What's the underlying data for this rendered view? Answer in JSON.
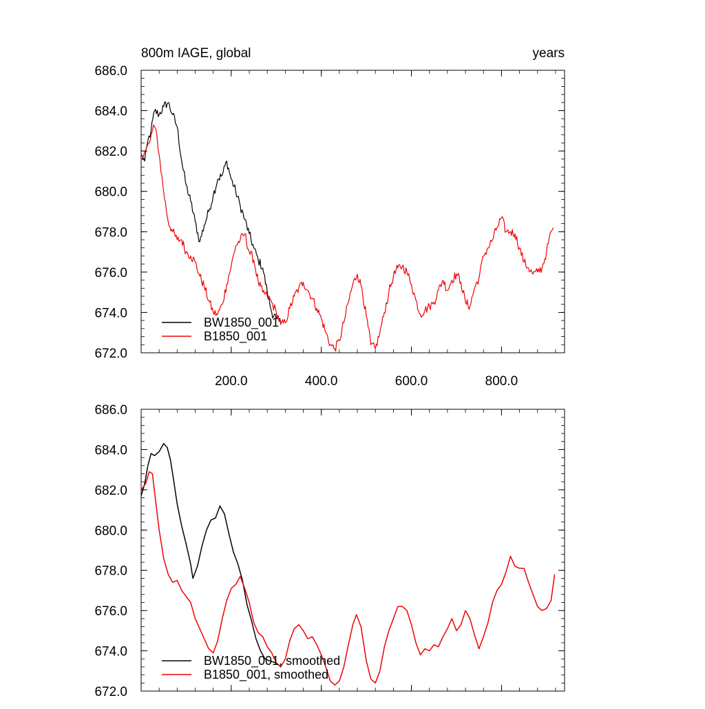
{
  "title_left": "800m IAGE, global",
  "title_right": "years",
  "chart_data": [
    {
      "type": "line",
      "panel": "top",
      "title": "800m IAGE, global",
      "units_label": "years",
      "xlim": [
        0,
        940
      ],
      "ylim": [
        672.0,
        686.0
      ],
      "x_ticks": [
        200.0,
        400.0,
        600.0,
        800.0
      ],
      "x_tick_labels": [
        "200.0",
        "400.0",
        "600.0",
        "800.0"
      ],
      "y_ticks": [
        672.0,
        674.0,
        676.0,
        678.0,
        680.0,
        682.0,
        684.0,
        686.0
      ],
      "y_tick_labels": [
        "672.0",
        "674.0",
        "676.0",
        "678.0",
        "680.0",
        "682.0",
        "684.0",
        "686.0"
      ],
      "grid": false,
      "legend_position": "bottom-left",
      "noisy": true,
      "series": [
        {
          "name": "BW1850_001",
          "color": "#000000",
          "points": [
            [
              0,
              681.8
            ],
            [
              8,
              681.5
            ],
            [
              15,
              682.5
            ],
            [
              22,
              683.0
            ],
            [
              30,
              684.0
            ],
            [
              40,
              683.8
            ],
            [
              50,
              684.2
            ],
            [
              60,
              684.4
            ],
            [
              70,
              683.8
            ],
            [
              80,
              683.2
            ],
            [
              90,
              681.5
            ],
            [
              100,
              680.3
            ],
            [
              110,
              679.5
            ],
            [
              120,
              678.5
            ],
            [
              130,
              677.5
            ],
            [
              140,
              678.3
            ],
            [
              150,
              679.0
            ],
            [
              160,
              679.8
            ],
            [
              170,
              680.6
            ],
            [
              180,
              680.8
            ],
            [
              190,
              681.5
            ],
            [
              200,
              680.6
            ],
            [
              210,
              680.0
            ],
            [
              220,
              679.3
            ],
            [
              230,
              678.6
            ],
            [
              240,
              677.9
            ],
            [
              250,
              677.2
            ],
            [
              260,
              676.6
            ],
            [
              270,
              676.2
            ],
            [
              280,
              675.0
            ],
            [
              290,
              674.0
            ],
            [
              300,
              673.7
            ],
            [
              310,
              673.5
            ]
          ]
        },
        {
          "name": "B1850_001",
          "color": "#ee0000",
          "points": [
            [
              0,
              681.8
            ],
            [
              10,
              682.0
            ],
            [
              20,
              682.5
            ],
            [
              25,
              683.0
            ],
            [
              30,
              683.2
            ],
            [
              35,
              682.8
            ],
            [
              40,
              681.8
            ],
            [
              50,
              680.0
            ],
            [
              60,
              678.5
            ],
            [
              70,
              678.0
            ],
            [
              80,
              677.6
            ],
            [
              90,
              677.6
            ],
            [
              100,
              677.0
            ],
            [
              110,
              676.8
            ],
            [
              120,
              676.5
            ],
            [
              130,
              675.8
            ],
            [
              140,
              675.3
            ],
            [
              150,
              674.6
            ],
            [
              160,
              674.0
            ],
            [
              170,
              673.9
            ],
            [
              180,
              674.4
            ],
            [
              190,
              675.4
            ],
            [
              200,
              676.3
            ],
            [
              210,
              677.3
            ],
            [
              220,
              677.6
            ],
            [
              230,
              677.9
            ],
            [
              240,
              677.0
            ],
            [
              250,
              676.6
            ],
            [
              260,
              675.5
            ],
            [
              270,
              675.0
            ],
            [
              280,
              674.8
            ],
            [
              290,
              674.5
            ],
            [
              300,
              674.0
            ],
            [
              310,
              673.4
            ],
            [
              320,
              673.5
            ],
            [
              330,
              674.2
            ],
            [
              340,
              674.8
            ],
            [
              350,
              675.2
            ],
            [
              360,
              675.5
            ],
            [
              370,
              675.1
            ],
            [
              380,
              674.7
            ],
            [
              390,
              674.2
            ],
            [
              400,
              673.7
            ],
            [
              410,
              673.0
            ],
            [
              420,
              672.4
            ],
            [
              430,
              672.2
            ],
            [
              440,
              672.6
            ],
            [
              450,
              673.5
            ],
            [
              460,
              674.5
            ],
            [
              470,
              675.4
            ],
            [
              480,
              675.9
            ],
            [
              490,
              675.2
            ],
            [
              500,
              673.8
            ],
            [
              510,
              672.4
            ],
            [
              520,
              672.2
            ],
            [
              530,
              673.0
            ],
            [
              540,
              674.0
            ],
            [
              550,
              675.0
            ],
            [
              560,
              675.8
            ],
            [
              570,
              676.2
            ],
            [
              580,
              676.3
            ],
            [
              590,
              676.0
            ],
            [
              600,
              675.4
            ],
            [
              610,
              674.6
            ],
            [
              620,
              673.9
            ],
            [
              630,
              674.1
            ],
            [
              640,
              674.3
            ],
            [
              650,
              674.5
            ],
            [
              660,
              675.1
            ],
            [
              670,
              675.6
            ],
            [
              680,
              675.1
            ],
            [
              690,
              675.6
            ],
            [
              700,
              675.9
            ],
            [
              710,
              675.5
            ],
            [
              720,
              674.5
            ],
            [
              730,
              674.3
            ],
            [
              740,
              675.2
            ],
            [
              750,
              675.7
            ],
            [
              760,
              676.8
            ],
            [
              770,
              677.2
            ],
            [
              780,
              677.6
            ],
            [
              790,
              678.2
            ],
            [
              800,
              678.7
            ],
            [
              810,
              678.0
            ],
            [
              820,
              678.0
            ],
            [
              830,
              677.9
            ],
            [
              840,
              677.2
            ],
            [
              850,
              676.5
            ],
            [
              860,
              676.2
            ],
            [
              870,
              675.9
            ],
            [
              880,
              676.0
            ],
            [
              890,
              676.2
            ],
            [
              900,
              677.0
            ],
            [
              910,
              678.0
            ],
            [
              915,
              678.2
            ]
          ]
        }
      ]
    },
    {
      "type": "line",
      "panel": "bottom",
      "xlim": [
        0,
        940
      ],
      "ylim": [
        672.0,
        686.0
      ],
      "y_ticks": [
        672.0,
        674.0,
        676.0,
        678.0,
        680.0,
        682.0,
        684.0,
        686.0
      ],
      "y_tick_labels": [
        "672.0",
        "674.0",
        "676.0",
        "678.0",
        "680.0",
        "682.0",
        "684.0",
        "686.0"
      ],
      "grid": false,
      "legend_position": "bottom-left",
      "noisy": false,
      "series": [
        {
          "name": "BW1850_001, smoothed",
          "color": "#000000",
          "points": [
            [
              0,
              681.7
            ],
            [
              8,
              682.3
            ],
            [
              15,
              683.2
            ],
            [
              22,
              683.8
            ],
            [
              30,
              683.7
            ],
            [
              40,
              683.9
            ],
            [
              50,
              684.3
            ],
            [
              58,
              684.1
            ],
            [
              65,
              683.5
            ],
            [
              72,
              682.5
            ],
            [
              80,
              681.3
            ],
            [
              90,
              680.2
            ],
            [
              100,
              679.3
            ],
            [
              110,
              678.3
            ],
            [
              115,
              677.6
            ],
            [
              125,
              678.2
            ],
            [
              135,
              679.2
            ],
            [
              145,
              680.0
            ],
            [
              155,
              680.5
            ],
            [
              165,
              680.6
            ],
            [
              175,
              681.2
            ],
            [
              185,
              680.8
            ],
            [
              195,
              679.8
            ],
            [
              205,
              678.9
            ],
            [
              215,
              678.3
            ],
            [
              225,
              677.5
            ],
            [
              235,
              676.3
            ],
            [
              245,
              675.5
            ],
            [
              255,
              674.6
            ],
            [
              265,
              674.0
            ],
            [
              275,
              673.6
            ],
            [
              285,
              673.5
            ],
            [
              300,
              673.4
            ],
            [
              310,
              673.2
            ]
          ]
        },
        {
          "name": "B1850_001, smoothed",
          "color": "#ee0000",
          "points": [
            [
              0,
              682.0
            ],
            [
              10,
              682.3
            ],
            [
              18,
              682.9
            ],
            [
              25,
              682.8
            ],
            [
              32,
              681.5
            ],
            [
              40,
              680.0
            ],
            [
              50,
              678.6
            ],
            [
              60,
              677.8
            ],
            [
              70,
              677.4
            ],
            [
              80,
              677.5
            ],
            [
              90,
              677.0
            ],
            [
              100,
              676.7
            ],
            [
              110,
              676.4
            ],
            [
              120,
              675.6
            ],
            [
              130,
              675.1
            ],
            [
              140,
              674.6
            ],
            [
              150,
              674.1
            ],
            [
              160,
              673.9
            ],
            [
              170,
              674.5
            ],
            [
              180,
              675.6
            ],
            [
              190,
              676.5
            ],
            [
              200,
              677.1
            ],
            [
              210,
              677.3
            ],
            [
              220,
              677.7
            ],
            [
              230,
              677.1
            ],
            [
              240,
              676.4
            ],
            [
              250,
              675.4
            ],
            [
              260,
              674.9
            ],
            [
              270,
              674.7
            ],
            [
              280,
              674.2
            ],
            [
              290,
              673.9
            ],
            [
              300,
              673.4
            ],
            [
              310,
              673.2
            ],
            [
              320,
              673.6
            ],
            [
              330,
              674.5
            ],
            [
              340,
              675.1
            ],
            [
              350,
              675.3
            ],
            [
              360,
              675.0
            ],
            [
              370,
              674.6
            ],
            [
              380,
              674.7
            ],
            [
              390,
              674.3
            ],
            [
              400,
              673.8
            ],
            [
              410,
              673.2
            ],
            [
              420,
              672.5
            ],
            [
              430,
              672.3
            ],
            [
              440,
              672.5
            ],
            [
              450,
              673.2
            ],
            [
              460,
              674.3
            ],
            [
              470,
              675.3
            ],
            [
              478,
              675.8
            ],
            [
              488,
              675.2
            ],
            [
              500,
              673.5
            ],
            [
              510,
              672.6
            ],
            [
              520,
              672.4
            ],
            [
              530,
              673.0
            ],
            [
              540,
              674.2
            ],
            [
              550,
              675.0
            ],
            [
              560,
              675.6
            ],
            [
              570,
              676.2
            ],
            [
              580,
              676.2
            ],
            [
              590,
              676.0
            ],
            [
              600,
              675.3
            ],
            [
              610,
              674.4
            ],
            [
              620,
              673.8
            ],
            [
              630,
              674.1
            ],
            [
              640,
              674.0
            ],
            [
              650,
              674.3
            ],
            [
              660,
              674.2
            ],
            [
              670,
              674.7
            ],
            [
              680,
              675.1
            ],
            [
              690,
              675.6
            ],
            [
              700,
              675.0
            ],
            [
              710,
              675.3
            ],
            [
              720,
              676.0
            ],
            [
              730,
              675.6
            ],
            [
              740,
              674.8
            ],
            [
              750,
              674.1
            ],
            [
              760,
              674.7
            ],
            [
              770,
              675.4
            ],
            [
              780,
              676.4
            ],
            [
              790,
              677.0
            ],
            [
              800,
              677.3
            ],
            [
              810,
              677.9
            ],
            [
              820,
              678.7
            ],
            [
              830,
              678.2
            ],
            [
              840,
              678.1
            ],
            [
              850,
              678.1
            ],
            [
              860,
              677.4
            ],
            [
              870,
              676.8
            ],
            [
              880,
              676.2
            ],
            [
              890,
              676.0
            ],
            [
              900,
              676.1
            ],
            [
              910,
              676.5
            ],
            [
              918,
              677.8
            ]
          ]
        }
      ]
    }
  ]
}
